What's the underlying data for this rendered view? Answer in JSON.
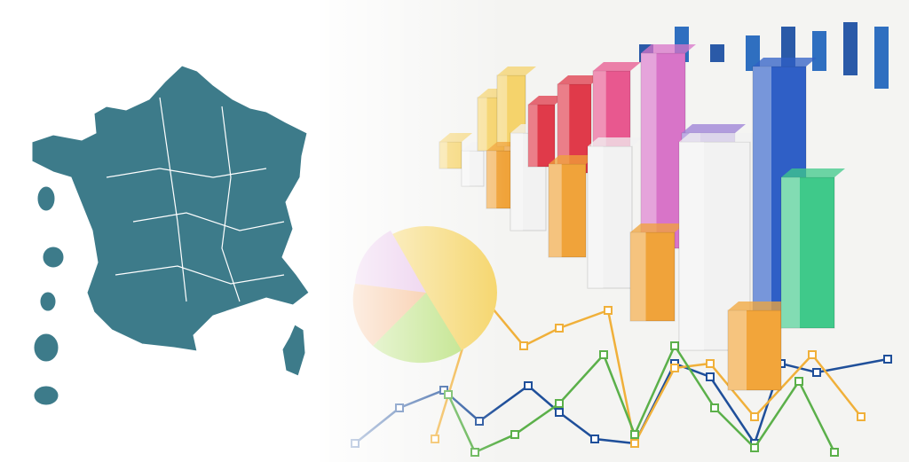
{
  "map": {
    "fill": "#3d7b8a",
    "border": "#ffffff"
  },
  "charts": {
    "bar_colors": [
      "#f5d36b",
      "#f0a33a",
      "#e03a4a",
      "#e8588f",
      "#d874c8",
      "#f2f2f2",
      "#9b7fd6",
      "#2f5fc6",
      "#3fc98a",
      "#f2a53a"
    ],
    "line_colors": [
      "#1f4f9a",
      "#f0b03a",
      "#5bb04a"
    ]
  }
}
